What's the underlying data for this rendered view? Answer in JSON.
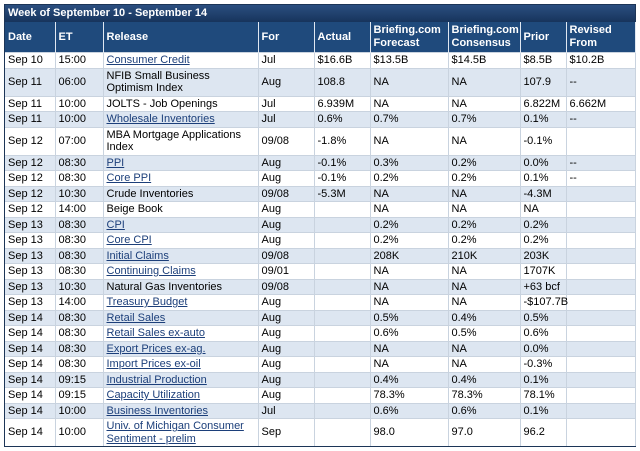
{
  "header": {
    "title": "Week of September 10 - September 14"
  },
  "table": {
    "columns": [
      "Date",
      "ET",
      "Release",
      "For",
      "Actual",
      "Briefing.com Forecast",
      "Briefing.com Consensus",
      "Prior",
      "Revised From"
    ],
    "release_is_link": [
      true,
      false,
      false,
      true,
      false,
      true,
      true,
      false,
      false,
      true,
      true,
      true,
      true,
      false,
      true,
      true,
      true,
      true,
      true,
      true,
      true,
      true,
      true
    ],
    "rows": [
      [
        "Sep 10",
        "15:00",
        "Consumer Credit",
        "Jul",
        "$16.6B",
        "$13.5B",
        "$14.5B",
        "$8.5B",
        "$10.2B"
      ],
      [
        "Sep 11",
        "06:00",
        "NFIB Small Business Optimism Index",
        "Aug",
        "108.8",
        "NA",
        "NA",
        "107.9",
        "--"
      ],
      [
        "Sep 11",
        "10:00",
        "JOLTS - Job Openings",
        "Jul",
        "6.939M",
        "NA",
        "NA",
        "6.822M",
        "6.662M"
      ],
      [
        "Sep 11",
        "10:00",
        "Wholesale Inventories",
        "Jul",
        "0.6%",
        "0.7%",
        "0.7%",
        "0.1%",
        "--"
      ],
      [
        "Sep 12",
        "07:00",
        "MBA Mortgage Applications Index",
        "09/08",
        "-1.8%",
        "NA",
        "NA",
        "-0.1%",
        null
      ],
      [
        "Sep 12",
        "08:30",
        "PPI",
        "Aug",
        "-0.1%",
        "0.3%",
        "0.2%",
        "0.0%",
        "--"
      ],
      [
        "Sep 12",
        "08:30",
        "Core PPI",
        "Aug",
        "-0.1%",
        "0.2%",
        "0.2%",
        "0.1%",
        "--"
      ],
      [
        "Sep 12",
        "10:30",
        "Crude Inventories",
        "09/08",
        "-5.3M",
        "NA",
        "NA",
        "-4.3M",
        null
      ],
      [
        "Sep 12",
        "14:00",
        "Beige Book",
        "Aug",
        null,
        "NA",
        "NA",
        "NA",
        null
      ],
      [
        "Sep 13",
        "08:30",
        "CPI",
        "Aug",
        null,
        "0.2%",
        "0.2%",
        "0.2%",
        null
      ],
      [
        "Sep 13",
        "08:30",
        "Core CPI",
        "Aug",
        null,
        "0.2%",
        "0.2%",
        "0.2%",
        null
      ],
      [
        "Sep 13",
        "08:30",
        "Initial Claims",
        "09/08",
        null,
        "208K",
        "210K",
        "203K",
        null
      ],
      [
        "Sep 13",
        "08:30",
        "Continuing Claims",
        "09/01",
        null,
        "NA",
        "NA",
        "1707K",
        null
      ],
      [
        "Sep 13",
        "10:30",
        "Natural Gas Inventories",
        "09/08",
        null,
        "NA",
        "NA",
        "+63 bcf",
        null
      ],
      [
        "Sep 13",
        "14:00",
        "Treasury Budget",
        "Aug",
        null,
        "NA",
        "NA",
        "-$107.7B",
        null
      ],
      [
        "Sep 14",
        "08:30",
        "Retail Sales",
        "Aug",
        null,
        "0.5%",
        "0.4%",
        "0.5%",
        null
      ],
      [
        "Sep 14",
        "08:30",
        "Retail Sales ex-auto",
        "Aug",
        null,
        "0.6%",
        "0.5%",
        "0.6%",
        null
      ],
      [
        "Sep 14",
        "08:30",
        "Export Prices ex-ag.",
        "Aug",
        null,
        "NA",
        "NA",
        "0.0%",
        null
      ],
      [
        "Sep 14",
        "08:30",
        "Import Prices ex-oil",
        "Aug",
        null,
        "NA",
        "NA",
        "-0.3%",
        null
      ],
      [
        "Sep 14",
        "09:15",
        "Industrial Production",
        "Aug",
        null,
        "0.4%",
        "0.4%",
        "0.1%",
        null
      ],
      [
        "Sep 14",
        "09:15",
        "Capacity Utilization",
        "Aug",
        null,
        "78.3%",
        "78.3%",
        "78.1%",
        null
      ],
      [
        "Sep 14",
        "10:00",
        "Business Inventories",
        "Jul",
        null,
        "0.6%",
        "0.6%",
        "0.1%",
        null
      ],
      [
        "Sep 14",
        "10:00",
        "Univ. of Michigan Consumer Sentiment - prelim",
        "Sep",
        null,
        "98.0",
        "97.0",
        "96.2",
        null
      ]
    ]
  }
}
